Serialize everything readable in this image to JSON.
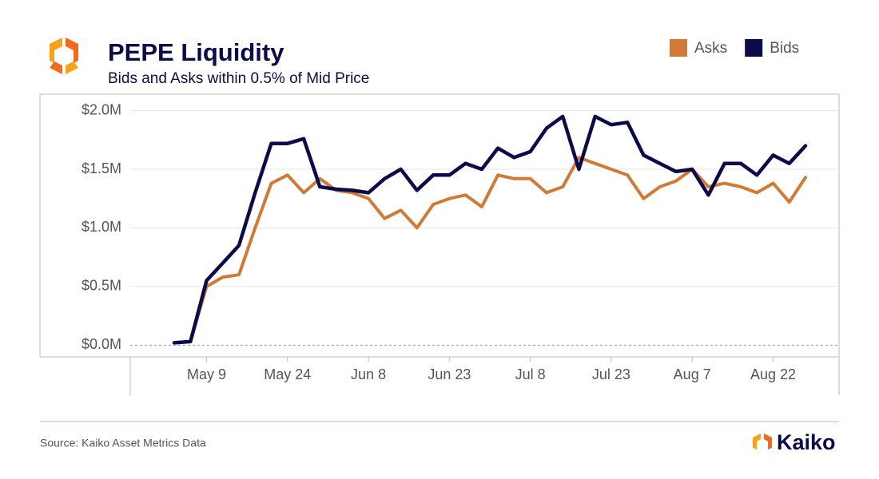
{
  "chart_data": {
    "type": "line",
    "title": "PEPE Liquidity",
    "subtitle": "Bids and Asks within 0.5% of Mid Price",
    "categories": [
      null,
      null,
      "May 9",
      null,
      null,
      null,
      null,
      "May 24",
      null,
      null,
      null,
      null,
      "Jun 8",
      null,
      null,
      null,
      null,
      "Jun 23",
      null,
      null,
      null,
      null,
      "Jul 8",
      null,
      null,
      null,
      null,
      "Jul 23",
      null,
      null,
      null,
      null,
      "Aug 7",
      null,
      null,
      null,
      null,
      "Aug 22",
      null,
      null
    ],
    "series": [
      {
        "name": "Asks",
        "color": "#d07a35",
        "values": [
          20000,
          30000,
          500000,
          580000,
          600000,
          1000000,
          1380000,
          1450000,
          1300000,
          1420000,
          1320000,
          1300000,
          1250000,
          1080000,
          1150000,
          1000000,
          1200000,
          1250000,
          1280000,
          1180000,
          1450000,
          1420000,
          1420000,
          1300000,
          1350000,
          1600000,
          1550000,
          1500000,
          1450000,
          1250000,
          1350000,
          1400000,
          1500000,
          1350000,
          1380000,
          1350000,
          1300000,
          1380000,
          1220000,
          1430000
        ]
      },
      {
        "name": "Bids",
        "color": "#0b0b4a",
        "values": [
          20000,
          30000,
          550000,
          700000,
          850000,
          1300000,
          1720000,
          1720000,
          1760000,
          1350000,
          1330000,
          1320000,
          1300000,
          1420000,
          1500000,
          1320000,
          1450000,
          1450000,
          1550000,
          1500000,
          1680000,
          1600000,
          1650000,
          1850000,
          1950000,
          1500000,
          1950000,
          1880000,
          1900000,
          1620000,
          1550000,
          1480000,
          1500000,
          1280000,
          1550000,
          1550000,
          1450000,
          1620000,
          1550000,
          1700000
        ]
      }
    ],
    "ylim": [
      -100000,
      2140000
    ],
    "yticks": [
      {
        "value": 0,
        "label": "$0.0M"
      },
      {
        "value": 500000,
        "label": "$0.5M"
      },
      {
        "value": 1000000,
        "label": "$1.0M"
      },
      {
        "value": 1500000,
        "label": "$1.5M"
      },
      {
        "value": 2000000,
        "label": "$2.0M"
      }
    ],
    "grid": true,
    "legend": "top-right"
  },
  "footer": {
    "source": "Source: Kaiko Asset Metrics Data",
    "brand": "Kaiko"
  }
}
